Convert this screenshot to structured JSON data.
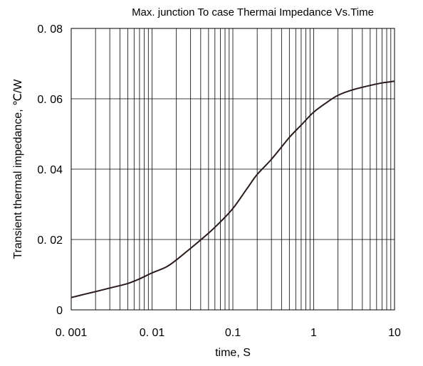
{
  "chart_data": {
    "type": "line",
    "title": "Max. junction To case Thermai  Impedance  Vs.Time",
    "xlabel": "time, S",
    "ylabel": "Transient thermal impedance, ℃/W",
    "x_scale": "log",
    "xlim": [
      0.001,
      10
    ],
    "ylim": [
      0,
      0.08
    ],
    "x_ticks": [
      {
        "value": 0.001,
        "label": "0. 001"
      },
      {
        "value": 0.01,
        "label": "0. 01"
      },
      {
        "value": 0.1,
        "label": "0.1"
      },
      {
        "value": 1,
        "label": "1"
      },
      {
        "value": 10,
        "label": "10"
      }
    ],
    "y_ticks": [
      {
        "value": 0,
        "label": "0"
      },
      {
        "value": 0.02,
        "label": "0. 02"
      },
      {
        "value": 0.04,
        "label": "0. 04"
      },
      {
        "value": 0.06,
        "label": "0. 06"
      },
      {
        "value": 0.08,
        "label": "0. 08"
      }
    ],
    "grid": true,
    "x": [
      0.001,
      0.0015,
      0.002,
      0.003,
      0.005,
      0.007,
      0.01,
      0.015,
      0.02,
      0.03,
      0.05,
      0.07,
      0.1,
      0.15,
      0.2,
      0.3,
      0.5,
      0.7,
      1,
      1.5,
      2,
      3,
      5,
      7,
      10
    ],
    "y": [
      0.0035,
      0.0045,
      0.0052,
      0.0062,
      0.0075,
      0.0088,
      0.0105,
      0.0122,
      0.0142,
      0.0175,
      0.0218,
      0.025,
      0.0288,
      0.0345,
      0.0385,
      0.0428,
      0.049,
      0.0525,
      0.0562,
      0.0592,
      0.061,
      0.0625,
      0.0638,
      0.0645,
      0.065
    ]
  }
}
